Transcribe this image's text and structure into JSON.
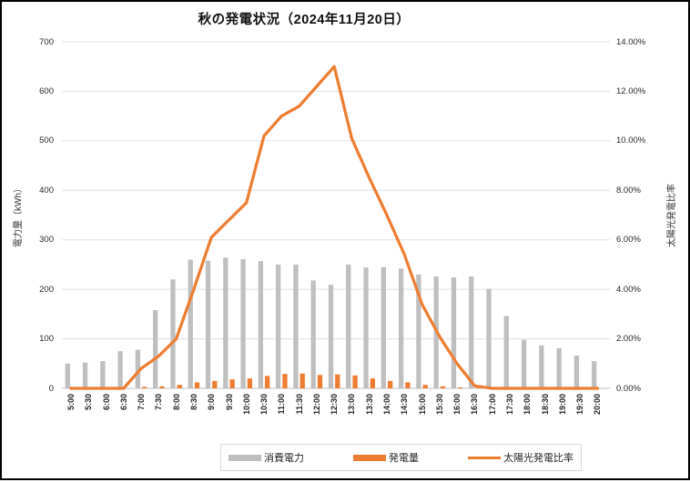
{
  "chart_data": {
    "type": "combo-bar-line",
    "title": "秋の発電状況（2024年11月20日）",
    "left_ylabel": "電力量（kWh）",
    "right_ylabel": "太陽光発電比率",
    "left_ylim": [
      0,
      700
    ],
    "right_ylim": [
      0,
      14
    ],
    "grid": true,
    "legend_position": "bottom",
    "left_tick_labels": [
      "0",
      "100",
      "200",
      "300",
      "400",
      "500",
      "600",
      "700"
    ],
    "right_tick_labels": [
      "0.00%",
      "2.00%",
      "4.00%",
      "6.00%",
      "8.00%",
      "10.00%",
      "12.00%",
      "14.00%"
    ],
    "categories": [
      "5:00",
      "5:30",
      "6:00",
      "6:30",
      "7:00",
      "7:30",
      "8:00",
      "8:30",
      "9:00",
      "9:30",
      "10:00",
      "10:30",
      "11:00",
      "11:30",
      "12:00",
      "12:30",
      "13:00",
      "13:30",
      "14:00",
      "14:30",
      "15:00",
      "15:30",
      "16:00",
      "16:30",
      "17:00",
      "17:30",
      "18:00",
      "18:30",
      "19:00",
      "19:30",
      "20:00"
    ],
    "series": [
      {
        "name": "消費電力",
        "type": "bar",
        "axis": "left",
        "color": "#BFBFBF",
        "values": [
          50,
          52,
          55,
          75,
          78,
          158,
          220,
          260,
          258,
          264,
          261,
          257,
          250,
          250,
          218,
          209,
          250,
          244,
          245,
          242,
          230,
          226,
          224,
          226,
          201,
          146,
          98,
          87,
          81,
          66,
          55
        ]
      },
      {
        "name": "発電量",
        "type": "bar",
        "axis": "left",
        "color": "#ED7D31",
        "values": [
          0,
          0,
          0,
          0,
          3,
          4,
          7,
          12,
          15,
          18,
          20,
          25,
          29,
          30,
          27,
          28,
          26,
          20,
          15,
          12,
          7,
          4,
          2,
          1,
          0,
          0,
          0,
          0,
          0,
          0,
          0
        ]
      },
      {
        "name": "太陽光発電比率",
        "type": "line",
        "axis": "right",
        "color": "#ED7D31",
        "unit": "%",
        "values": [
          0,
          0,
          0,
          0,
          0.8,
          1.3,
          2.0,
          4.0,
          6.1,
          6.8,
          7.5,
          10.2,
          11.0,
          11.4,
          12.2,
          13.0,
          10.1,
          8.5,
          7.0,
          5.4,
          3.4,
          2.1,
          1.0,
          0.1,
          0,
          0,
          0,
          0,
          0,
          0,
          0
        ]
      }
    ],
    "legend": [
      {
        "label": "消費電力",
        "type": "bar",
        "color": "#BFBFBF"
      },
      {
        "label": "発電量",
        "type": "bar",
        "color": "#ED7D31"
      },
      {
        "label": "太陽光発電比率",
        "type": "line",
        "color": "#ED7D31"
      }
    ],
    "colors": {
      "gridline": "#DBE1E6",
      "axis_line": "#BFBFBF",
      "text": "#262626"
    }
  }
}
